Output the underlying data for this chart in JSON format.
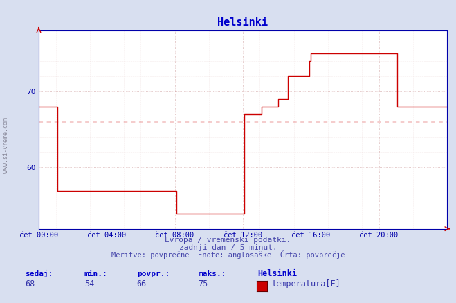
{
  "title": "Helsinki",
  "title_color": "#0000cc",
  "title_fontsize": 11,
  "background_color": "#d8dff0",
  "plot_bg_color": "#ffffff",
  "xlabel_ticks": [
    "čet 00:00",
    "čet 04:00",
    "čet 08:00",
    "čet 12:00",
    "čet 16:00",
    "čet 20:00"
  ],
  "ylim": [
    52,
    78
  ],
  "xlim": [
    0,
    288
  ],
  "avg_value": 66,
  "grid_color_major": "#bbbbdd",
  "grid_color_minor": "#ddddee",
  "line_color": "#cc0000",
  "avg_line_color": "#cc0000",
  "axis_color": "#0000aa",
  "spine_color": "#0000aa",
  "watermark": "www.si-vreme.com",
  "footer_line1": "Evropa / vremenski podatki.",
  "footer_line2": "zadnji dan / 5 minut.",
  "footer_line3": "Meritve: povprečne  Enote: anglosaške  Črta: povprečje",
  "footer_color": "#4444aa",
  "stats_label_color": "#0000cc",
  "stats_value_color": "#3333aa",
  "sedaj": 68,
  "min_val": 54,
  "povpr": 66,
  "maks": 75,
  "legend_label": "Helsinki",
  "series_label": "temperatura[F]",
  "legend_box_color": "#cc0000",
  "time_points": [
    0,
    1,
    12,
    13,
    48,
    49,
    95,
    96,
    97,
    143,
    144,
    145,
    155,
    156,
    157,
    168,
    169,
    175,
    176,
    190,
    191,
    192,
    215,
    216,
    251,
    252,
    253,
    287,
    288
  ],
  "temp_values": [
    68,
    68,
    68,
    57,
    57,
    57,
    57,
    57,
    54,
    54,
    54,
    67,
    67,
    67,
    68,
    68,
    69,
    69,
    72,
    72,
    74,
    75,
    75,
    75,
    75,
    75,
    68,
    68,
    68
  ]
}
